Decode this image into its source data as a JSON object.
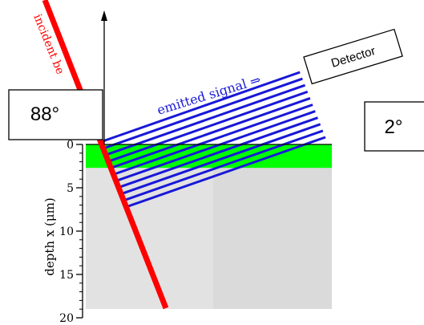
{
  "diagram": {
    "incident_beam_label": "incident be",
    "emitted_signal_label": "emitted signal ⇒",
    "detector_label": "Detector",
    "incidence_angle_label": "88°",
    "exit_angle_label": "2°",
    "depth_axis": {
      "label": "depth x (μm)",
      "ticks": [
        "0",
        "5",
        "10",
        "15",
        "20"
      ],
      "range_um": [
        0,
        20
      ]
    },
    "layer_thickness_um": 2.7,
    "signal_line_count": 11,
    "colors": {
      "incident_beam": "#ff0000",
      "emitted_signal": "#1818d8",
      "surface_layer": "#00ff00",
      "substrate": "#e2e2e2",
      "substrate_shade": "#dadada",
      "axis": "#000000",
      "background": "#ffffff"
    }
  }
}
